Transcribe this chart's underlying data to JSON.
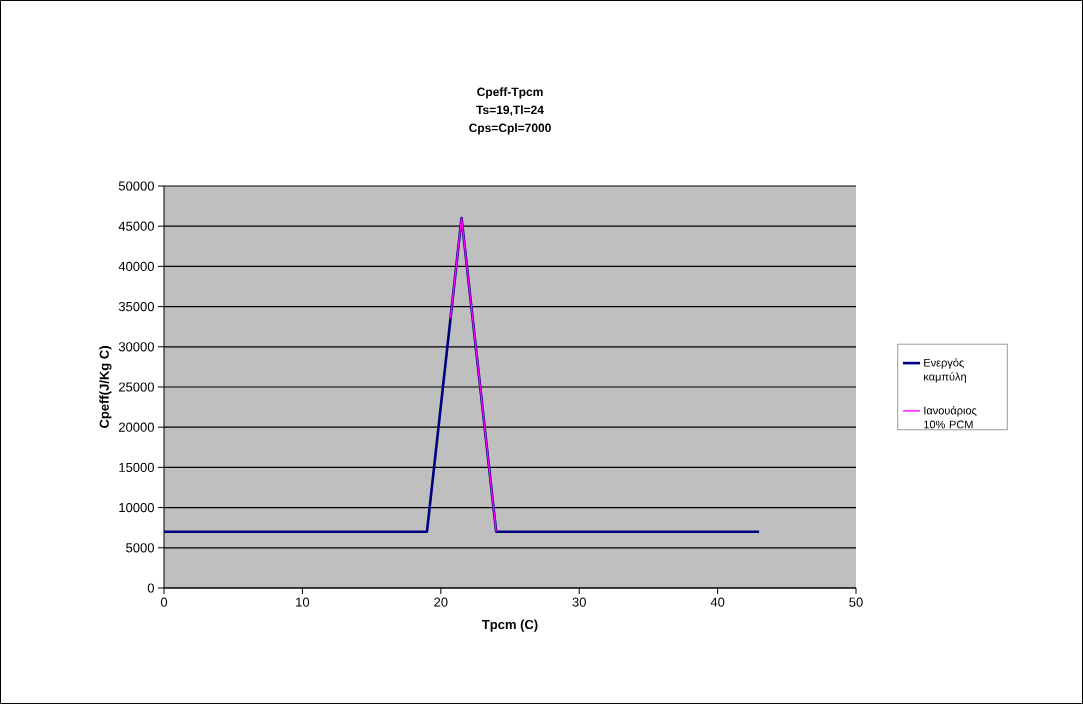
{
  "chart_data": {
    "type": "line",
    "title": "Cpeff-Tpcm\nTs=19,Tl=24\nCps=Cpl=7000",
    "xlabel": "Tpcm (C)",
    "ylabel": "Cpeff(J/Kg C)",
    "series": [
      {
        "name": "Ενεργός καμπύλη",
        "color": "#000080",
        "x": [
          0,
          19,
          21.5,
          24,
          43
        ],
        "values": [
          7000,
          7000,
          46000,
          7000,
          7000
        ]
      },
      {
        "name": "Ιανουάριος 10% PCM",
        "color": "#ff00ff",
        "x": [
          20.7,
          21.5,
          24
        ],
        "values": [
          33600,
          46000,
          7000
        ]
      }
    ],
    "xlim": [
      0,
      50
    ],
    "xticks": [
      0,
      10,
      20,
      30,
      40,
      50
    ],
    "ylim": [
      0,
      50000
    ],
    "yticks": [
      0,
      5000,
      10000,
      15000,
      20000,
      25000,
      30000,
      35000,
      40000,
      45000,
      50000
    ],
    "grid": "y",
    "legend": "right",
    "marker": "none",
    "line_style": "solid"
  }
}
